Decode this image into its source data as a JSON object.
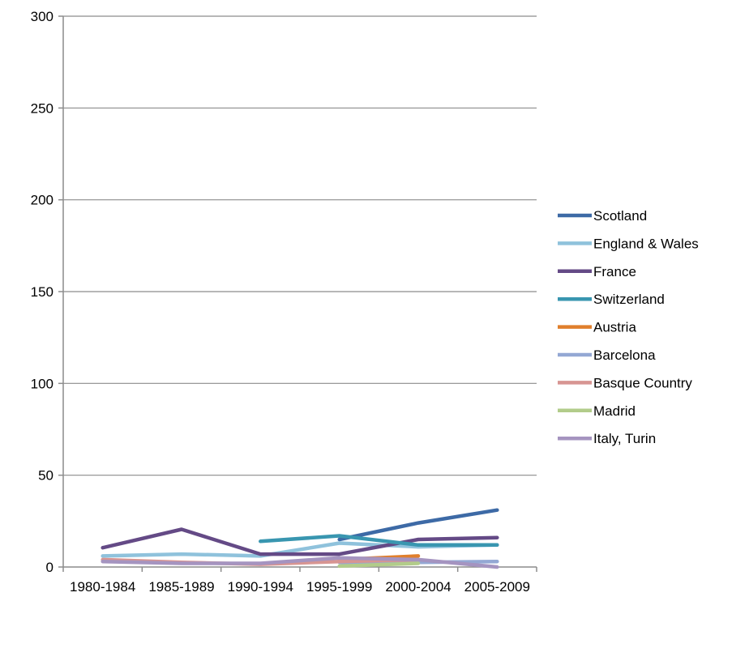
{
  "chart_data": {
    "type": "line",
    "title": "",
    "xlabel": "",
    "ylabel": "",
    "categories": [
      "1980-1984",
      "1985-1989",
      "1990-1994",
      "1995-1999",
      "2000-2004",
      "2005-2009"
    ],
    "ylim": [
      0,
      300
    ],
    "yticks": [
      0,
      50,
      100,
      150,
      200,
      250,
      300
    ],
    "grid": true,
    "legend": "right",
    "series": [
      {
        "name": "Scotland",
        "color": "#3d6aa6",
        "values": [
          null,
          null,
          null,
          15,
          24,
          31
        ]
      },
      {
        "name": "England & Wales",
        "color": "#8fc2dc",
        "values": [
          6,
          7,
          6,
          13,
          11,
          12
        ]
      },
      {
        "name": "France",
        "color": "#644a86",
        "values": [
          10.5,
          20.5,
          7,
          7,
          15,
          16
        ]
      },
      {
        "name": "Switzerland",
        "color": "#3996b0",
        "values": [
          null,
          null,
          14,
          17,
          12,
          12
        ]
      },
      {
        "name": "Austria",
        "color": "#e07f2c",
        "values": [
          null,
          null,
          null,
          4,
          6,
          null
        ]
      },
      {
        "name": "Barcelona",
        "color": "#94a8d4",
        "values": [
          null,
          null,
          null,
          2.5,
          2.5,
          3
        ]
      },
      {
        "name": "Basque Country",
        "color": "#d79592",
        "values": [
          4,
          2.5,
          1.5,
          3,
          4,
          null
        ]
      },
      {
        "name": "Madrid",
        "color": "#b2cc8a",
        "values": [
          null,
          null,
          null,
          0.5,
          2,
          null
        ]
      },
      {
        "name": "Italy, Turin",
        "color": "#a594c0",
        "values": [
          3,
          2,
          2,
          5,
          4,
          0
        ]
      }
    ]
  }
}
